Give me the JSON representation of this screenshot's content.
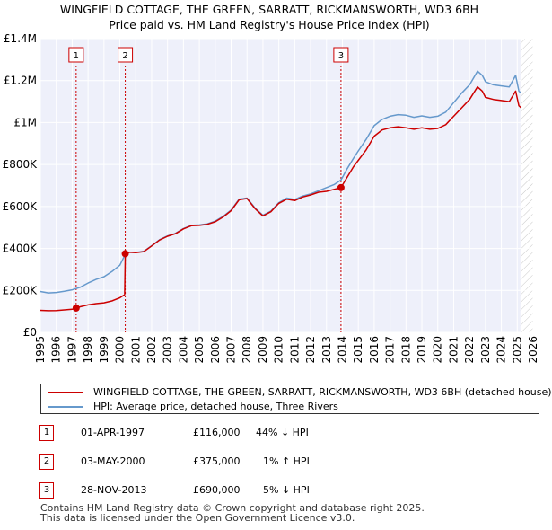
{
  "title_line1": "WINGFIELD COTTAGE, THE GREEN, SARRATT, RICKMANSWORTH, WD3 6BH",
  "title_line2": "Price paid vs. HM Land Registry's House Price Index (HPI)",
  "chart_data": {
    "type": "line",
    "title": "WINGFIELD COTTAGE, THE GREEN, SARRATT, RICKMANSWORTH, WD3 6BH",
    "subtitle": "Price paid vs. HM Land Registry's House Price Index (HPI)",
    "xlim": [
      1995,
      2026
    ],
    "ylim": [
      0,
      1400000
    ],
    "x_ticks": [
      1995,
      1996,
      1997,
      1998,
      1999,
      2000,
      2001,
      2002,
      2003,
      2004,
      2005,
      2006,
      2007,
      2008,
      2009,
      2010,
      2011,
      2012,
      2013,
      2014,
      2015,
      2016,
      2017,
      2018,
      2019,
      2020,
      2021,
      2022,
      2023,
      2024,
      2025,
      2026
    ],
    "y_ticks": [
      {
        "value": 0,
        "label": "£0"
      },
      {
        "value": 200000,
        "label": "£200K"
      },
      {
        "value": 400000,
        "label": "£400K"
      },
      {
        "value": 600000,
        "label": "£600K"
      },
      {
        "value": 800000,
        "label": "£800K"
      },
      {
        "value": 1000000,
        "label": "£1M"
      },
      {
        "value": 1200000,
        "label": "£1.2M"
      },
      {
        "value": 1400000,
        "label": "£1.4M"
      }
    ],
    "future_shade_from": 2025.2,
    "series": [
      {
        "name": "WINGFIELD COTTAGE, THE GREEN, SARRATT, RICKMANSWORTH, WD3 6BH (detached house)",
        "color": "#cc0000",
        "points": [
          [
            1995.0,
            105000
          ],
          [
            1995.5,
            103000
          ],
          [
            1996.0,
            104000
          ],
          [
            1996.5,
            107000
          ],
          [
            1997.0,
            110000
          ],
          [
            1997.25,
            116000
          ],
          [
            1997.5,
            122000
          ],
          [
            1998.0,
            131000
          ],
          [
            1998.5,
            137000
          ],
          [
            1999.0,
            141000
          ],
          [
            1999.5,
            150000
          ],
          [
            2000.0,
            165000
          ],
          [
            2000.3,
            180000
          ],
          [
            2000.34,
            375000
          ],
          [
            2000.6,
            382000
          ],
          [
            2001.0,
            380000
          ],
          [
            2001.5,
            385000
          ],
          [
            2002.0,
            412000
          ],
          [
            2002.5,
            440000
          ],
          [
            2003.0,
            458000
          ],
          [
            2003.5,
            470000
          ],
          [
            2004.0,
            493000
          ],
          [
            2004.5,
            508000
          ],
          [
            2005.0,
            510000
          ],
          [
            2005.5,
            515000
          ],
          [
            2006.0,
            527000
          ],
          [
            2006.5,
            550000
          ],
          [
            2007.0,
            580000
          ],
          [
            2007.5,
            632000
          ],
          [
            2008.0,
            638000
          ],
          [
            2008.5,
            590000
          ],
          [
            2009.0,
            555000
          ],
          [
            2009.5,
            575000
          ],
          [
            2010.0,
            615000
          ],
          [
            2010.5,
            635000
          ],
          [
            2011.0,
            628000
          ],
          [
            2011.5,
            645000
          ],
          [
            2012.0,
            655000
          ],
          [
            2012.5,
            668000
          ],
          [
            2013.0,
            672000
          ],
          [
            2013.5,
            682000
          ],
          [
            2013.91,
            690000
          ],
          [
            2014.3,
            740000
          ],
          [
            2014.7,
            790000
          ],
          [
            2015.0,
            820000
          ],
          [
            2015.5,
            870000
          ],
          [
            2016.0,
            935000
          ],
          [
            2016.5,
            965000
          ],
          [
            2017.0,
            975000
          ],
          [
            2017.5,
            980000
          ],
          [
            2018.0,
            975000
          ],
          [
            2018.5,
            968000
          ],
          [
            2019.0,
            975000
          ],
          [
            2019.5,
            968000
          ],
          [
            2020.0,
            972000
          ],
          [
            2020.5,
            990000
          ],
          [
            2021.0,
            1030000
          ],
          [
            2021.5,
            1070000
          ],
          [
            2022.0,
            1110000
          ],
          [
            2022.5,
            1170000
          ],
          [
            2022.8,
            1150000
          ],
          [
            2023.0,
            1120000
          ],
          [
            2023.5,
            1110000
          ],
          [
            2024.0,
            1105000
          ],
          [
            2024.5,
            1100000
          ],
          [
            2024.9,
            1150000
          ],
          [
            2025.1,
            1080000
          ],
          [
            2025.25,
            1070000
          ]
        ]
      },
      {
        "name": "HPI: Average price, detached house, Three Rivers",
        "color": "#6699cc",
        "points": [
          [
            1995.0,
            195000
          ],
          [
            1995.5,
            188000
          ],
          [
            1996.0,
            190000
          ],
          [
            1996.5,
            196000
          ],
          [
            1997.0,
            203000
          ],
          [
            1997.5,
            215000
          ],
          [
            1998.0,
            235000
          ],
          [
            1998.5,
            252000
          ],
          [
            1999.0,
            265000
          ],
          [
            1999.5,
            290000
          ],
          [
            2000.0,
            320000
          ],
          [
            2000.34,
            372000
          ],
          [
            2000.6,
            382000
          ],
          [
            2001.0,
            381000
          ],
          [
            2001.5,
            386000
          ],
          [
            2002.0,
            413000
          ],
          [
            2002.5,
            442000
          ],
          [
            2003.0,
            460000
          ],
          [
            2003.5,
            472000
          ],
          [
            2004.0,
            495000
          ],
          [
            2004.5,
            510000
          ],
          [
            2005.0,
            512000
          ],
          [
            2005.5,
            517000
          ],
          [
            2006.0,
            530000
          ],
          [
            2006.5,
            553000
          ],
          [
            2007.0,
            583000
          ],
          [
            2007.5,
            635000
          ],
          [
            2008.0,
            640000
          ],
          [
            2008.5,
            593000
          ],
          [
            2009.0,
            558000
          ],
          [
            2009.5,
            578000
          ],
          [
            2010.0,
            618000
          ],
          [
            2010.5,
            640000
          ],
          [
            2011.0,
            633000
          ],
          [
            2011.5,
            650000
          ],
          [
            2012.0,
            660000
          ],
          [
            2012.5,
            675000
          ],
          [
            2013.0,
            690000
          ],
          [
            2013.5,
            705000
          ],
          [
            2013.91,
            726000
          ],
          [
            2014.3,
            780000
          ],
          [
            2014.7,
            830000
          ],
          [
            2015.0,
            865000
          ],
          [
            2015.5,
            920000
          ],
          [
            2016.0,
            985000
          ],
          [
            2016.5,
            1015000
          ],
          [
            2017.0,
            1030000
          ],
          [
            2017.5,
            1038000
          ],
          [
            2018.0,
            1035000
          ],
          [
            2018.5,
            1025000
          ],
          [
            2019.0,
            1032000
          ],
          [
            2019.5,
            1025000
          ],
          [
            2020.0,
            1030000
          ],
          [
            2020.5,
            1050000
          ],
          [
            2021.0,
            1095000
          ],
          [
            2021.5,
            1140000
          ],
          [
            2022.0,
            1180000
          ],
          [
            2022.5,
            1245000
          ],
          [
            2022.8,
            1225000
          ],
          [
            2023.0,
            1195000
          ],
          [
            2023.5,
            1180000
          ],
          [
            2024.0,
            1175000
          ],
          [
            2024.5,
            1170000
          ],
          [
            2024.9,
            1225000
          ],
          [
            2025.1,
            1150000
          ],
          [
            2025.25,
            1140000
          ]
        ]
      }
    ],
    "sales": [
      {
        "label": "1",
        "x": 1997.25,
        "price": 116000
      },
      {
        "label": "2",
        "x": 2000.34,
        "price": 375000
      },
      {
        "label": "3",
        "x": 2013.91,
        "price": 690000
      }
    ]
  },
  "legend": {
    "property": "WINGFIELD COTTAGE, THE GREEN, SARRATT, RICKMANSWORTH, WD3 6BH (detached house)",
    "hpi": "HPI: Average price, detached house, Three Rivers",
    "property_color": "#cc0000",
    "hpi_color": "#6699cc"
  },
  "sales_table": [
    {
      "num": "1",
      "date": "01-APR-1997",
      "price": "£116,000",
      "hpi": "44% ↓ HPI"
    },
    {
      "num": "2",
      "date": "03-MAY-2000",
      "price": "£375,000",
      "hpi": "1% ↑ HPI"
    },
    {
      "num": "3",
      "date": "28-NOV-2013",
      "price": "£690,000",
      "hpi": "5% ↓ HPI"
    }
  ],
  "footer": {
    "line1": "Contains HM Land Registry data © Crown copyright and database right 2025.",
    "line2": "This data is licensed under the Open Government Licence v3.0."
  }
}
